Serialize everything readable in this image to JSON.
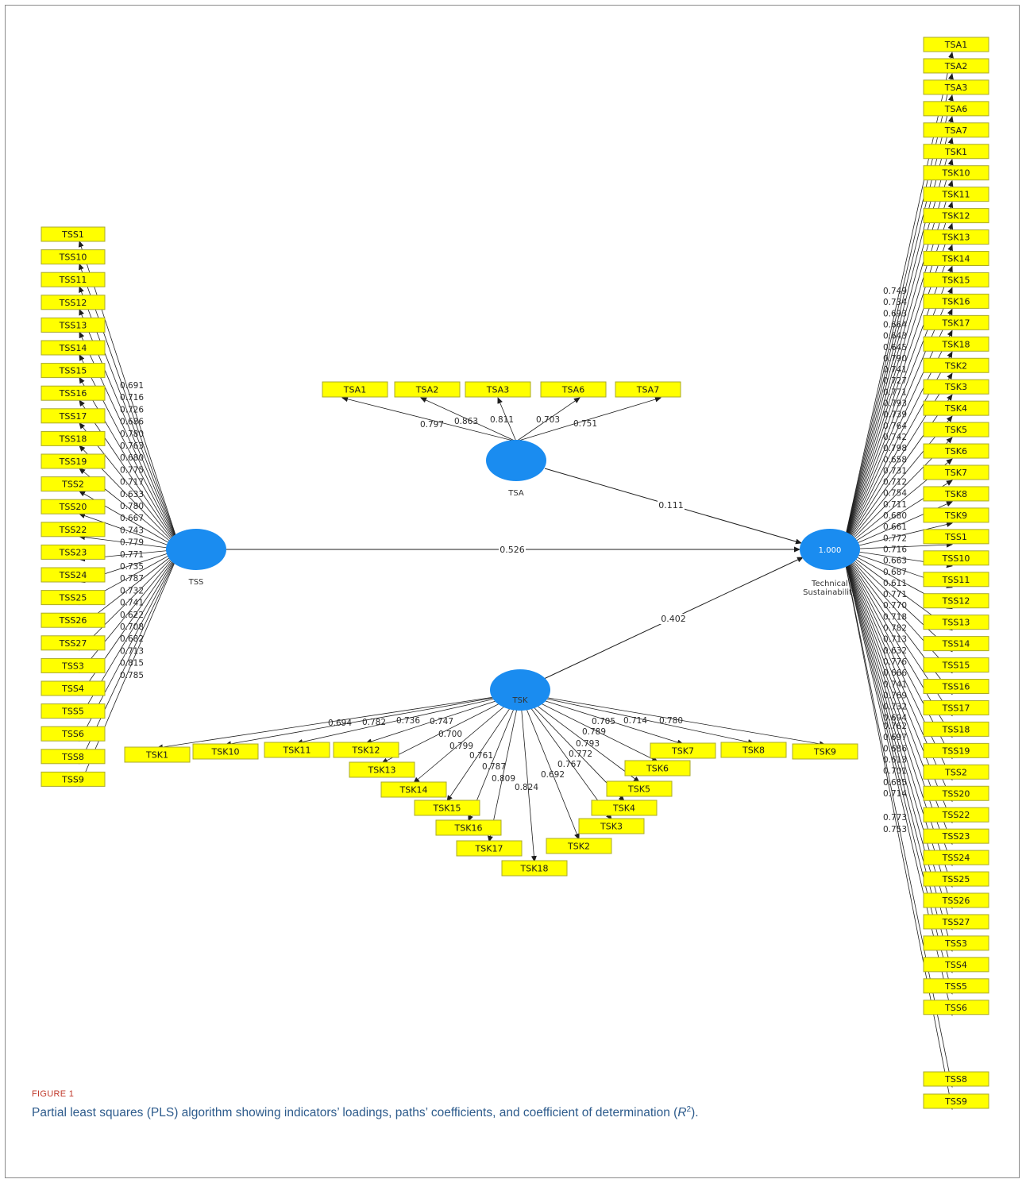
{
  "figure": {
    "label": "FIGURE 1",
    "caption_main": "Partial least squares (PLS) algorithm showing indicators’ loadings, paths’ coefficients, and coefficient of determination (",
    "caption_r": "R",
    "caption_sup": "2",
    "caption_end": ")."
  },
  "diagram": {
    "latent": [
      {
        "id": "TSS",
        "label": "TSS"
      },
      {
        "id": "TSA",
        "label": "TSA"
      },
      {
        "id": "TSK",
        "label": "TSK"
      },
      {
        "id": "TS",
        "label": "Technical Sustainability",
        "value": "1.000"
      }
    ],
    "paths": [
      {
        "from": "TSA",
        "to": "TS",
        "coef": "0.111"
      },
      {
        "from": "TSS",
        "to": "TS",
        "coef": "0.526"
      },
      {
        "from": "TSK",
        "to": "TS",
        "coef": "0.402"
      }
    ],
    "tss_indicators": [
      {
        "name": "TSS1",
        "loading": "0.691"
      },
      {
        "name": "TSS10",
        "loading": "0.716"
      },
      {
        "name": "TSS11",
        "loading": "0.726"
      },
      {
        "name": "TSS12",
        "loading": "0.686"
      },
      {
        "name": "TSS13",
        "loading": "0.780"
      },
      {
        "name": "TSS14",
        "loading": "0.763"
      },
      {
        "name": "TSS15",
        "loading": "0.680"
      },
      {
        "name": "TSS16",
        "loading": "0.775"
      },
      {
        "name": "TSS17",
        "loading": "0.717"
      },
      {
        "name": "TSS18",
        "loading": "0.633"
      },
      {
        "name": "TSS19",
        "loading": "0.780"
      },
      {
        "name": "TSS2",
        "loading": "0.667"
      },
      {
        "name": "TSS20",
        "loading": "0.743"
      },
      {
        "name": "TSS22",
        "loading": "0.779"
      },
      {
        "name": "TSS23",
        "loading": "0.771"
      },
      {
        "name": "TSS24",
        "loading": "0.735"
      },
      {
        "name": "TSS25",
        "loading": "0.787"
      },
      {
        "name": "TSS26",
        "loading": "0.732"
      },
      {
        "name": "TSS27",
        "loading": "0.741"
      },
      {
        "name": "TSS3",
        "loading": "0.622"
      },
      {
        "name": "TSS4",
        "loading": "0.708"
      },
      {
        "name": "TSS5",
        "loading": "0.682"
      },
      {
        "name": "TSS6",
        "loading": "0.713"
      },
      {
        "name": "TSS8",
        "loading": "0.815"
      },
      {
        "name": "TSS9",
        "loading": "0.785"
      }
    ],
    "tsa_indicators": [
      {
        "name": "TSA1",
        "loading": "0.797"
      },
      {
        "name": "TSA2",
        "loading": "0.863"
      },
      {
        "name": "TSA3",
        "loading": "0.811"
      },
      {
        "name": "TSA6",
        "loading": "0.703"
      },
      {
        "name": "TSA7",
        "loading": "0.751"
      }
    ],
    "tsk_indicators": [
      {
        "name": "TSK1",
        "loading": "0.694"
      },
      {
        "name": "TSK10",
        "loading": "0.782"
      },
      {
        "name": "TSK11",
        "loading": "0.736"
      },
      {
        "name": "TSK12",
        "loading": "0.747"
      },
      {
        "name": "TSK13",
        "loading": "0.700"
      },
      {
        "name": "TSK14",
        "loading": "0.799"
      },
      {
        "name": "TSK15",
        "loading": "0.761"
      },
      {
        "name": "TSK16",
        "loading": "0.787"
      },
      {
        "name": "TSK17",
        "loading": "0.809"
      },
      {
        "name": "TSK18",
        "loading": "0.824"
      },
      {
        "name": "TSK2",
        "loading": "0.692"
      },
      {
        "name": "TSK3",
        "loading": "0.767"
      },
      {
        "name": "TSK4",
        "loading": "0.772"
      },
      {
        "name": "TSK5",
        "loading": "0.793"
      },
      {
        "name": "TSK6",
        "loading": "0.789"
      },
      {
        "name": "TSK7",
        "loading": "0.705"
      },
      {
        "name": "TSK8",
        "loading": "0.714"
      },
      {
        "name": "TSK9",
        "loading": "0.780"
      }
    ],
    "ts_indicators": [
      {
        "name": "TSA1",
        "loading": ""
      },
      {
        "name": "TSA2",
        "loading": ""
      },
      {
        "name": "TSA3",
        "loading": ""
      },
      {
        "name": "TSA6",
        "loading": ""
      },
      {
        "name": "TSA7",
        "loading": ""
      },
      {
        "name": "TSK1",
        "loading": ""
      },
      {
        "name": "TSK10",
        "loading": ""
      },
      {
        "name": "TSK11",
        "loading": ""
      },
      {
        "name": "TSK12",
        "loading": ""
      },
      {
        "name": "TSK13",
        "loading": "0.749"
      },
      {
        "name": "TSK14",
        "loading": "0.734"
      },
      {
        "name": "TSK15",
        "loading": "0.693"
      },
      {
        "name": "TSK16",
        "loading": "0.664"
      },
      {
        "name": "TSK17",
        "loading": "0.643"
      },
      {
        "name": "TSK18",
        "loading": "0.645"
      },
      {
        "name": "TSK2",
        "loading": "0.790"
      },
      {
        "name": "TSK3",
        "loading": "0.741"
      },
      {
        "name": "TSK4",
        "loading": "0.727"
      },
      {
        "name": "TSK5",
        "loading": "0.771"
      },
      {
        "name": "TSK6",
        "loading": "0.793"
      },
      {
        "name": "TSK7",
        "loading": "0.739"
      },
      {
        "name": "TSK8",
        "loading": "0.764"
      },
      {
        "name": "TSK9",
        "loading": "0.742"
      },
      {
        "name": "TSS1",
        "loading": "0.798"
      },
      {
        "name": "TSS10",
        "loading": "0.658"
      },
      {
        "name": "TSS11",
        "loading": "0.731"
      },
      {
        "name": "TSS12",
        "loading": "0.712"
      },
      {
        "name": "TSS13",
        "loading": "0.754"
      },
      {
        "name": "TSS14",
        "loading": "0.711"
      },
      {
        "name": "TSS15",
        "loading": "0.680"
      },
      {
        "name": "TSS16",
        "loading": "0.661"
      },
      {
        "name": "TSS17",
        "loading": "0.772"
      },
      {
        "name": "TSS18",
        "loading": "0.716"
      },
      {
        "name": "TSS19",
        "loading": "0.663"
      },
      {
        "name": "TSS2",
        "loading": "0.687"
      },
      {
        "name": "TSS20",
        "loading": "0.611"
      },
      {
        "name": "TSS22",
        "loading": "0.771"
      },
      {
        "name": "TSS23",
        "loading": "0.770"
      },
      {
        "name": "TSS24",
        "loading": "0.718"
      },
      {
        "name": "TSS25",
        "loading": "0.782"
      },
      {
        "name": "TSS26",
        "loading": "0.713"
      },
      {
        "name": "TSS27",
        "loading": "0.632"
      },
      {
        "name": "TSS3",
        "loading": "0.776"
      },
      {
        "name": "TSS4",
        "loading": "0.666"
      },
      {
        "name": "TSS5",
        "loading": "0.741"
      },
      {
        "name": "TSS6",
        "loading": "0.769"
      },
      {
        "name": "TSS8",
        "loading": "0.732"
      },
      {
        "name": "TSS9",
        "loading": "0.694"
      }
    ],
    "ts_extra_loadings": [
      "0.762",
      "0.697",
      "0.686",
      "0.613",
      "0.701",
      "0.685",
      "0.714",
      "0.773",
      "0.753"
    ],
    "colors": {
      "indicator_fill": "#ffff00",
      "indicator_border": "#a9a92e",
      "latent_fill": "#1a8cf0",
      "line": "#1e1e1e"
    }
  }
}
